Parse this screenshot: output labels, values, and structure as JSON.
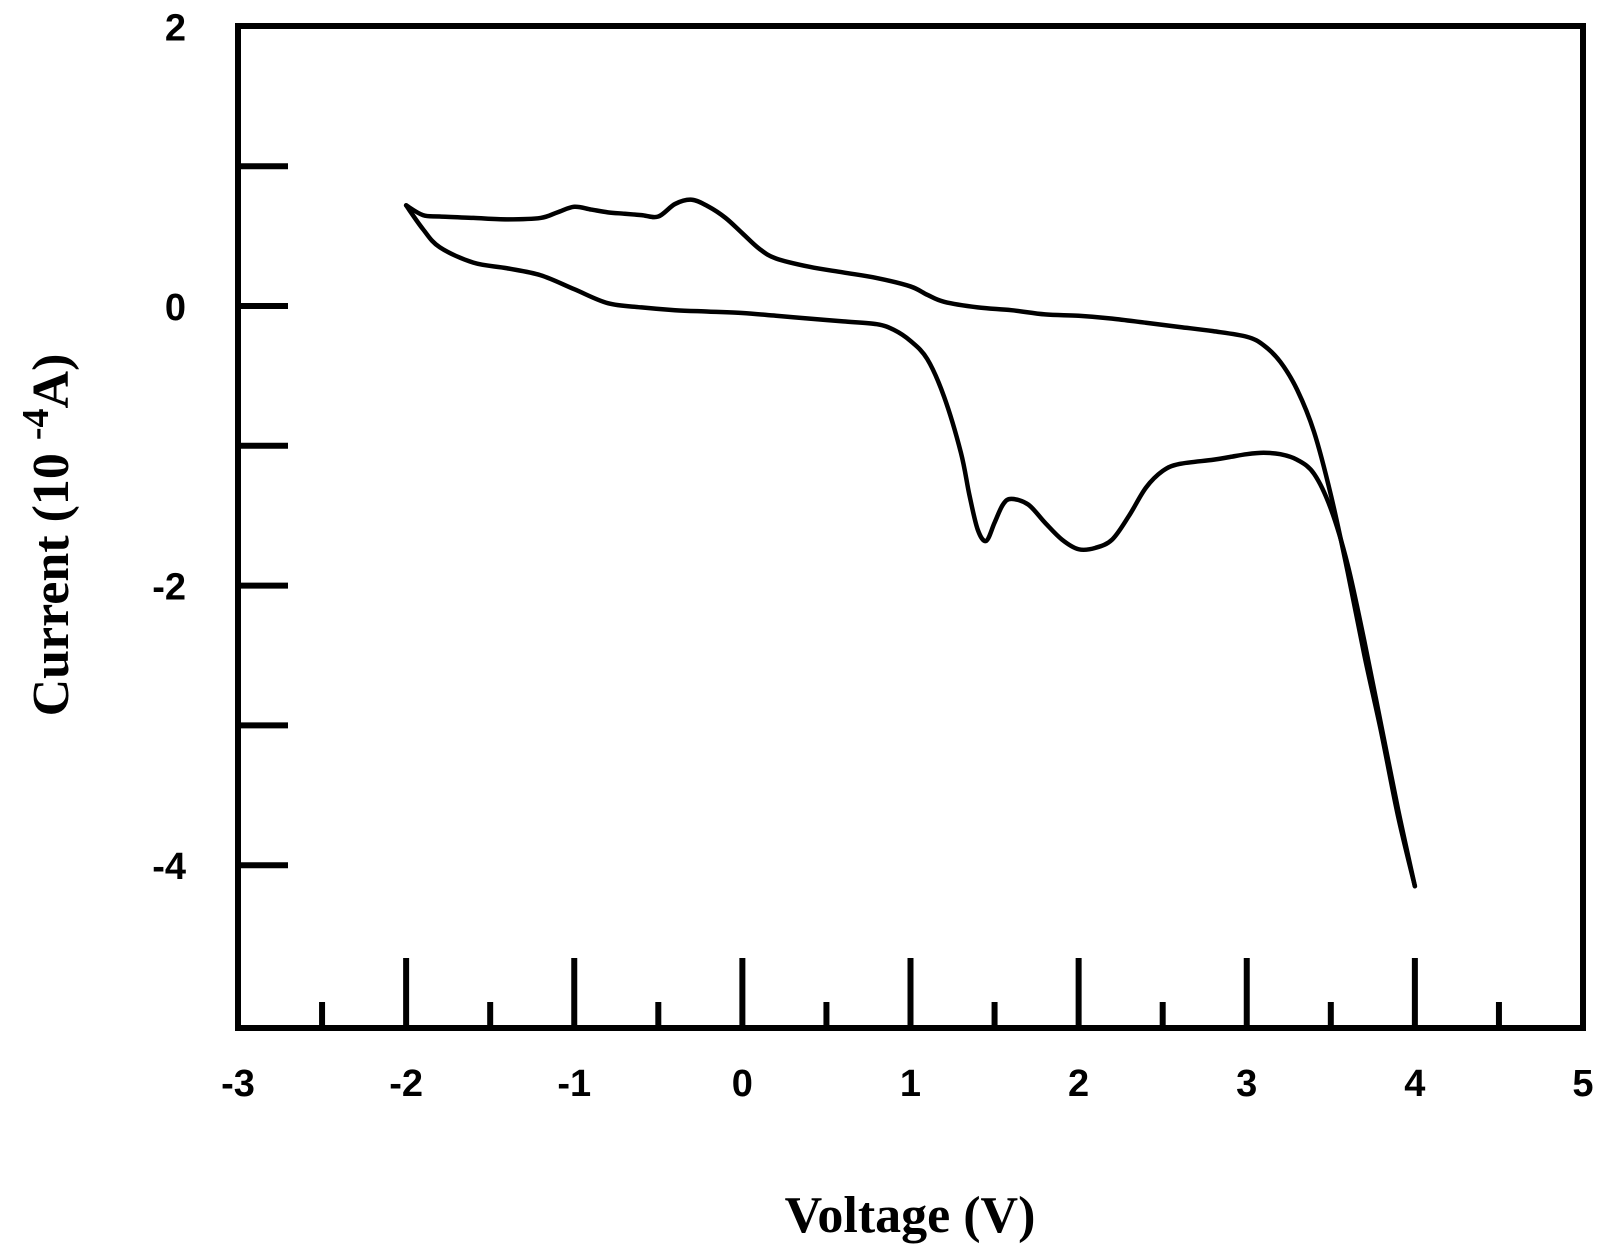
{
  "chart_data": {
    "type": "line",
    "title": "",
    "xlabel": "Voltage (V)",
    "ylabel_parts": {
      "before": "Current (10 ",
      "superscript": "-4",
      "after": "A)"
    },
    "xlim": [
      -3,
      5
    ],
    "ylim": [
      -5,
      2
    ],
    "x_major_ticks": [
      -3,
      -2,
      -1,
      0,
      1,
      2,
      3,
      4,
      5
    ],
    "x_tick_labels": [
      "-3",
      "-2",
      "-1",
      "0",
      "1",
      "2",
      "3",
      "4",
      "5"
    ],
    "x_minor_ticks": [
      -2.5,
      -1.5,
      -0.5,
      0.5,
      1.5,
      2.5,
      3.5,
      4.5
    ],
    "y_ticks": [
      2,
      1,
      0,
      -1,
      -2,
      -3,
      -4
    ],
    "y_tick_labels": [
      "2",
      "",
      "0",
      "",
      "-2",
      "",
      "-4"
    ],
    "grid": false,
    "legend": "none",
    "line_color": "#000000",
    "series": [
      {
        "x": [
          -2.0,
          -1.9,
          -1.8,
          -1.6,
          -1.4,
          -1.2,
          -1.1,
          -1.0,
          -0.9,
          -0.8,
          -0.7,
          -0.6,
          -0.5,
          -0.4,
          -0.3,
          -0.2,
          -0.1,
          0.0,
          0.1,
          0.2,
          0.4,
          0.6,
          0.8,
          1.0,
          1.1,
          1.2,
          1.4,
          1.6,
          1.8,
          2.0,
          2.2,
          2.4,
          2.6,
          2.8,
          3.0,
          3.1,
          3.2,
          3.3,
          3.4,
          3.5,
          3.6,
          3.7,
          3.8,
          3.9,
          4.0
        ],
        "y": [
          0.72,
          0.65,
          0.64,
          0.63,
          0.62,
          0.63,
          0.67,
          0.71,
          0.69,
          0.67,
          0.66,
          0.65,
          0.64,
          0.73,
          0.76,
          0.71,
          0.63,
          0.52,
          0.41,
          0.34,
          0.28,
          0.24,
          0.2,
          0.14,
          0.08,
          0.03,
          -0.01,
          -0.03,
          -0.06,
          -0.07,
          -0.09,
          -0.12,
          -0.15,
          -0.18,
          -0.22,
          -0.28,
          -0.4,
          -0.6,
          -0.9,
          -1.35,
          -1.9,
          -2.5,
          -3.05,
          -3.65,
          -4.15
        ]
      },
      {
        "x": [
          4.0,
          3.9,
          3.8,
          3.7,
          3.6,
          3.5,
          3.4,
          3.3,
          3.2,
          3.1,
          3.0,
          2.9,
          2.8,
          2.6,
          2.5,
          2.4,
          2.3,
          2.2,
          2.1,
          2.0,
          1.9,
          1.8,
          1.7,
          1.6,
          1.55,
          1.5,
          1.45,
          1.4,
          1.35,
          1.3,
          1.2,
          1.1,
          1.0,
          0.9,
          0.8,
          0.6,
          0.4,
          0.2,
          0.0,
          -0.2,
          -0.4,
          -0.6,
          -0.8,
          -1.0,
          -1.2,
          -1.4,
          -1.6,
          -1.8,
          -1.9,
          -2.0
        ],
        "y": [
          -4.15,
          -3.6,
          -3.0,
          -2.4,
          -1.85,
          -1.45,
          -1.2,
          -1.1,
          -1.06,
          -1.05,
          -1.06,
          -1.08,
          -1.1,
          -1.13,
          -1.18,
          -1.3,
          -1.5,
          -1.67,
          -1.73,
          -1.74,
          -1.67,
          -1.55,
          -1.42,
          -1.38,
          -1.42,
          -1.55,
          -1.68,
          -1.6,
          -1.35,
          -1.05,
          -0.65,
          -0.38,
          -0.25,
          -0.17,
          -0.13,
          -0.11,
          -0.09,
          -0.07,
          -0.05,
          -0.04,
          -0.03,
          -0.01,
          0.02,
          0.12,
          0.22,
          0.27,
          0.31,
          0.42,
          0.55,
          0.72
        ]
      }
    ]
  }
}
